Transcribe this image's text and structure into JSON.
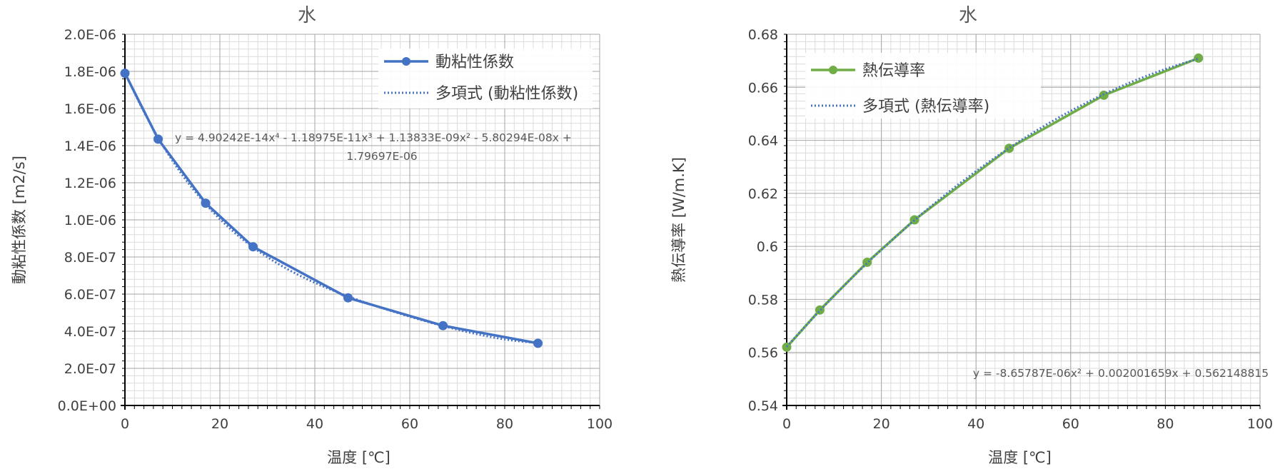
{
  "chart_data": [
    {
      "type": "line",
      "title": "水",
      "xlabel": "温度 [℃]",
      "ylabel": "動粘性係数 [m2/s]",
      "xlim": [
        0,
        100
      ],
      "ylim": [
        0,
        2e-06
      ],
      "x_ticks": [
        "0",
        "20",
        "40",
        "60",
        "80",
        "100"
      ],
      "y_ticks": [
        "0.0E+00",
        "2.0E-07",
        "4.0E-07",
        "6.0E-07",
        "8.0E-07",
        "1.0E-06",
        "1.2E-06",
        "1.4E-06",
        "1.6E-06",
        "1.8E-06",
        "2.0E-06"
      ],
      "grid": true,
      "legend_position": "top-right",
      "series": [
        {
          "name": "動粘性係数",
          "color": "#4472c4",
          "style": "solid-markers",
          "x": [
            0,
            7,
            17,
            27,
            47,
            67,
            87
          ],
          "values": [
            1.79e-06,
            1.435e-06,
            1.09e-06,
            8.55e-07,
            5.8e-07,
            4.3e-07,
            3.35e-07
          ]
        },
        {
          "name": "多項式 (動粘性係数)",
          "color": "#4472c4",
          "style": "dotted-trendline",
          "equation": {
            "type": "poly",
            "coef": [
              1.79697e-06,
              -5.80294e-08,
              1.13833e-09,
              -1.18975e-11,
              4.90242e-14
            ]
          }
        }
      ],
      "annotation": [
        "y = 4.90242E-14x⁴ - 1.18975E-11x³ + 1.13833E-09x² - 5.80294E-08x +",
        "1.79697E-06"
      ]
    },
    {
      "type": "line",
      "title": "水",
      "xlabel": "温度 [℃]",
      "ylabel": "熱伝導率 [W/m.K]",
      "xlim": [
        0,
        100
      ],
      "ylim": [
        0.54,
        0.68
      ],
      "x_ticks": [
        "0",
        "20",
        "40",
        "60",
        "80",
        "100"
      ],
      "y_ticks": [
        "0.54",
        "0.56",
        "0.58",
        "0.6",
        "0.62",
        "0.64",
        "0.66",
        "0.68"
      ],
      "grid": true,
      "legend_position": "top-left",
      "series": [
        {
          "name": "熱伝導率",
          "color": "#70ad47",
          "style": "solid-markers",
          "x": [
            0,
            7,
            17,
            27,
            47,
            67,
            87
          ],
          "values": [
            0.562,
            0.576,
            0.594,
            0.61,
            0.637,
            0.657,
            0.671
          ]
        },
        {
          "name": "多項式 (熱伝導率)",
          "color": "#4472c4",
          "style": "dotted-trendline",
          "equation": {
            "type": "poly",
            "coef": [
              0.562148815,
              0.002001659,
              -8.65787e-06
            ]
          }
        }
      ],
      "annotation": [
        "y = -8.65787E-06x² + 0.002001659x + 0.562148815"
      ]
    }
  ]
}
